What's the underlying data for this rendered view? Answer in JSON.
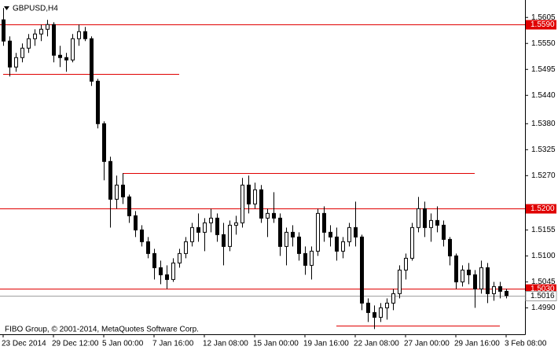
{
  "chart_data": {
    "type": "candlestick",
    "title": "GBPUSD,H4",
    "footer": "FIBO Group, © 2001-2014, MetaQuotes Software Corp.",
    "categories": [
      "23 Dec 2014",
      null,
      null,
      null,
      null,
      null,
      null,
      null,
      "29 Dec 12:00",
      null,
      null,
      null,
      null,
      null,
      null,
      null,
      "5 Jan 00:00",
      null,
      null,
      null,
      null,
      null,
      null,
      null,
      "7 Jan 16:00",
      null,
      null,
      null,
      null,
      null,
      null,
      null,
      "12 Jan 08:00",
      null,
      null,
      null,
      null,
      null,
      null,
      null,
      "15 Jan 00:00",
      null,
      null,
      null,
      null,
      null,
      null,
      null,
      "19 Jan 16:00",
      null,
      null,
      null,
      null,
      null,
      null,
      null,
      "22 Jan 08:00",
      null,
      null,
      null,
      null,
      null,
      null,
      null,
      "27 Jan 00:00",
      null,
      null,
      null,
      null,
      null,
      null,
      null,
      "29 Jan 16:00",
      null,
      null,
      null,
      null,
      null,
      null,
      null,
      "3 Feb 08:00"
    ],
    "open": [
      1.56,
      1.5555,
      1.55,
      1.552,
      1.554,
      1.556,
      1.557,
      1.558,
      1.559,
      1.5525,
      1.552,
      1.5515,
      1.556,
      1.5575,
      1.556,
      1.547,
      1.538,
      1.53,
      1.522,
      1.525,
      1.5225,
      1.5185,
      1.5155,
      1.513,
      1.5105,
      1.5075,
      1.506,
      1.505,
      1.5085,
      1.5105,
      1.513,
      1.516,
      1.515,
      1.517,
      1.518,
      1.5145,
      1.512,
      1.5165,
      1.517,
      1.525,
      1.521,
      1.524,
      1.518,
      1.519,
      1.518,
      1.512,
      1.515,
      1.514,
      1.5105,
      1.508,
      1.511,
      1.519,
      1.515,
      1.514,
      1.511,
      1.513,
      1.516,
      1.514,
      1.5,
      1.498,
      1.497,
      1.499,
      1.5,
      1.502,
      1.507,
      1.5095,
      1.516,
      1.52,
      1.516,
      1.5175,
      1.5165,
      1.5135,
      1.51,
      1.5045,
      1.507,
      1.506,
      1.503,
      1.5075,
      1.502,
      1.5035,
      1.5025
    ],
    "high": [
      1.5625,
      1.5565,
      1.553,
      1.555,
      1.557,
      1.558,
      1.559,
      1.56,
      1.5595,
      1.5545,
      1.553,
      1.557,
      1.559,
      1.5585,
      1.5565,
      1.5475,
      1.5385,
      1.531,
      1.527,
      1.5275,
      1.523,
      1.5195,
      1.5165,
      1.514,
      1.5115,
      1.509,
      1.508,
      1.5095,
      1.5115,
      1.514,
      1.517,
      1.519,
      1.518,
      1.52,
      1.519,
      1.517,
      1.5175,
      1.5185,
      1.5265,
      1.527,
      1.5255,
      1.525,
      1.52,
      1.5235,
      1.519,
      1.516,
      1.5165,
      1.515,
      1.512,
      1.512,
      1.52,
      1.5205,
      1.5165,
      1.516,
      1.514,
      1.517,
      1.5215,
      1.5145,
      1.501,
      1.4995,
      1.5,
      1.501,
      1.503,
      1.508,
      1.5105,
      1.517,
      1.5225,
      1.5215,
      1.519,
      1.5205,
      1.5175,
      1.514,
      1.5105,
      1.508,
      1.5085,
      1.507,
      1.509,
      1.5085,
      1.5045,
      1.5045,
      1.503
    ],
    "low": [
      1.5545,
      1.548,
      1.549,
      1.551,
      1.553,
      1.5545,
      1.5555,
      1.5565,
      1.551,
      1.55,
      1.549,
      1.551,
      1.5545,
      1.5555,
      1.546,
      1.537,
      1.526,
      1.516,
      1.52,
      1.521,
      1.517,
      1.514,
      1.512,
      1.5095,
      1.505,
      1.504,
      1.503,
      1.5045,
      1.5075,
      1.5095,
      1.512,
      1.513,
      1.511,
      1.515,
      1.513,
      1.508,
      1.511,
      1.5145,
      1.516,
      1.519,
      1.52,
      1.517,
      1.514,
      1.517,
      1.51,
      1.508,
      1.512,
      1.509,
      1.506,
      1.505,
      1.51,
      1.513,
      1.512,
      1.509,
      1.5095,
      1.512,
      1.512,
      1.4985,
      1.496,
      1.4945,
      1.496,
      1.4965,
      1.4985,
      1.501,
      1.505,
      1.509,
      1.515,
      1.514,
      1.513,
      1.515,
      1.512,
      1.508,
      1.503,
      1.5035,
      1.504,
      1.499,
      1.502,
      1.5,
      1.5005,
      1.501,
      1.501
    ],
    "close": [
      1.5555,
      1.55,
      1.552,
      1.554,
      1.556,
      1.557,
      1.558,
      1.559,
      1.5525,
      1.552,
      1.5515,
      1.556,
      1.5575,
      1.556,
      1.547,
      1.538,
      1.53,
      1.522,
      1.525,
      1.5225,
      1.5185,
      1.5155,
      1.513,
      1.5105,
      1.5075,
      1.506,
      1.505,
      1.5085,
      1.5105,
      1.513,
      1.516,
      1.515,
      1.517,
      1.518,
      1.5145,
      1.512,
      1.5165,
      1.517,
      1.525,
      1.521,
      1.524,
      1.518,
      1.519,
      1.518,
      1.512,
      1.515,
      1.514,
      1.5105,
      1.508,
      1.511,
      1.519,
      1.515,
      1.514,
      1.511,
      1.513,
      1.516,
      1.514,
      1.5,
      1.498,
      1.497,
      1.499,
      1.5,
      1.502,
      1.507,
      1.5095,
      1.516,
      1.52,
      1.516,
      1.5175,
      1.5165,
      1.5135,
      1.51,
      1.5045,
      1.507,
      1.506,
      1.503,
      1.5075,
      1.502,
      1.5035,
      1.5025,
      1.5016
    ],
    "ylim": [
      1.4934,
      1.5642
    ],
    "yticks": [
      1.5605,
      {
        "value": 1.555,
        "label": "1.5550"
      },
      1.5495,
      {
        "value": 1.544,
        "label": "1.5440"
      },
      {
        "value": 1.538,
        "label": "1.5380"
      },
      1.5325,
      {
        "value": 1.527,
        "label": "1.5270"
      },
      1.5155,
      {
        "value": 1.51,
        "label": "1.5100"
      },
      1.5045,
      {
        "value": 1.499,
        "label": "1.4990"
      }
    ],
    "levels": [
      {
        "value": 1.559,
        "label": "1.5590"
      },
      {
        "value": 1.52,
        "label": "1.5200"
      },
      {
        "value": 1.503,
        "label": "1.5030"
      }
    ],
    "segments": [
      {
        "value": 1.5485,
        "start": 0,
        "end": 28
      },
      {
        "value": 1.5275,
        "start": 19,
        "end": 75
      },
      {
        "value": 1.4952,
        "start": 53,
        "end": 79
      }
    ],
    "current_price": {
      "value": 1.5016,
      "label": "1.5016"
    },
    "up_color": "#ffffff",
    "down_color": "#000000",
    "level_color": "#e00000"
  }
}
